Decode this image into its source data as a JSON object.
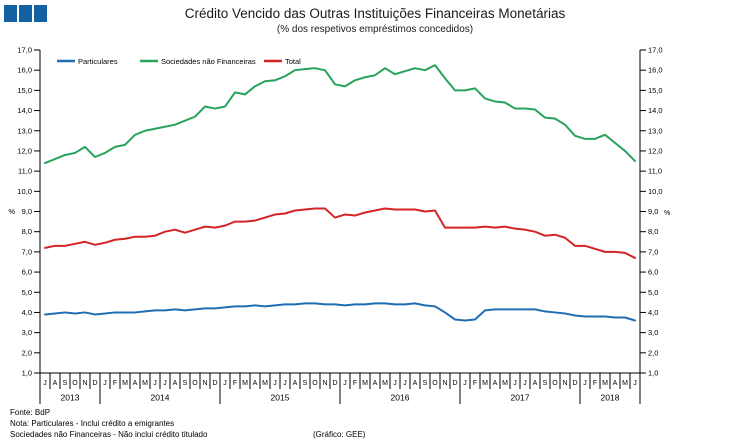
{
  "logo": {
    "color": "#1360A3",
    "square_count": 3
  },
  "header": {
    "title": "Crédito Vencido das Outras Instituições Financeiras Monetárias",
    "subtitle": "(% dos respetivos empréstimos concedidos)"
  },
  "footer": {
    "fonte": "Fonte: BdP",
    "nota1": "Nota: Particulares - Inclui crédito a emigrantes",
    "nota2": "Sociedades não Financeiras - Não inclui crédito titulado",
    "grafico": "(Gráfico: GEE)"
  },
  "chart_data": {
    "type": "line",
    "title": "Crédito Vencido das Outras Instituições Financeiras Monetárias",
    "subtitle": "(% dos respetivos empréstimos concedidos)",
    "ylabel": "%",
    "ylim": [
      1.0,
      17.0
    ],
    "ytick_step": 1.0,
    "ytick_labels": [
      "1,0",
      "2,0",
      "3,0",
      "4,0",
      "5,0",
      "6,0",
      "7,0",
      "8,0",
      "9,0",
      "10,0",
      "11,0",
      "12,0",
      "13,0",
      "14,0",
      "15,0",
      "16,0",
      "17,0"
    ],
    "percent_label": "%",
    "percent_at": "9,0",
    "grid": false,
    "legend_position": "top-left-inside",
    "x_month_labels": [
      "J",
      "A",
      "S",
      "O",
      "N",
      "D",
      "J",
      "F",
      "M",
      "A",
      "M",
      "J",
      "J",
      "A",
      "S",
      "O",
      "N",
      "D",
      "J",
      "F",
      "M",
      "A",
      "M",
      "J",
      "J",
      "A",
      "S",
      "O",
      "N",
      "D",
      "J",
      "F",
      "M",
      "A",
      "M",
      "J",
      "J",
      "A",
      "S",
      "O",
      "N",
      "D",
      "J",
      "F",
      "M",
      "A",
      "M",
      "J",
      "J",
      "A",
      "S",
      "O",
      "N",
      "D",
      "J",
      "F",
      "M",
      "A",
      "M",
      "J"
    ],
    "years": [
      {
        "label": "2013",
        "months": 6
      },
      {
        "label": "2014",
        "months": 12
      },
      {
        "label": "2015",
        "months": 12
      },
      {
        "label": "2016",
        "months": 12
      },
      {
        "label": "2017",
        "months": 12
      },
      {
        "label": "2018",
        "months": 6
      }
    ],
    "series": [
      {
        "name": "Particulares",
        "color": "#1F6EB4",
        "values": [
          3.9,
          3.95,
          4.0,
          3.95,
          4.0,
          3.9,
          3.95,
          4.0,
          4.0,
          4.0,
          4.05,
          4.1,
          4.1,
          4.15,
          4.1,
          4.15,
          4.2,
          4.2,
          4.25,
          4.3,
          4.3,
          4.35,
          4.3,
          4.35,
          4.4,
          4.4,
          4.45,
          4.45,
          4.4,
          4.4,
          4.35,
          4.4,
          4.4,
          4.45,
          4.45,
          4.4,
          4.4,
          4.45,
          4.35,
          4.3,
          4.0,
          3.65,
          3.6,
          3.65,
          4.1,
          4.15,
          4.15,
          4.15,
          4.15,
          4.15,
          4.05,
          4.0,
          3.95,
          3.85,
          3.8,
          3.8,
          3.8,
          3.75,
          3.75,
          3.6
        ]
      },
      {
        "name": "Sociedades não Financeiras",
        "color": "#27A35C",
        "values": [
          11.4,
          11.6,
          11.8,
          11.9,
          12.2,
          11.7,
          11.9,
          12.2,
          12.3,
          12.8,
          13.0,
          13.1,
          13.2,
          13.3,
          13.5,
          13.7,
          14.2,
          14.1,
          14.2,
          14.9,
          14.8,
          15.2,
          15.45,
          15.5,
          15.7,
          16.0,
          16.05,
          16.1,
          16.0,
          15.3,
          15.2,
          15.5,
          15.65,
          15.75,
          16.1,
          15.8,
          15.95,
          16.1,
          16.0,
          16.25,
          15.6,
          15.0,
          15.0,
          15.1,
          14.6,
          14.45,
          14.4,
          14.1,
          14.1,
          14.05,
          13.65,
          13.6,
          13.3,
          12.75,
          12.6,
          12.6,
          12.8,
          12.4,
          12.0,
          11.5
        ]
      },
      {
        "name": "Total",
        "color": "#D42426",
        "values": [
          7.2,
          7.3,
          7.3,
          7.4,
          7.5,
          7.35,
          7.45,
          7.6,
          7.65,
          7.75,
          7.75,
          7.8,
          8.0,
          8.1,
          7.95,
          8.1,
          8.25,
          8.2,
          8.3,
          8.5,
          8.5,
          8.55,
          8.7,
          8.85,
          8.9,
          9.05,
          9.1,
          9.15,
          9.15,
          8.7,
          8.85,
          8.8,
          8.95,
          9.05,
          9.15,
          9.1,
          9.1,
          9.1,
          9.0,
          9.05,
          8.2,
          8.2,
          8.2,
          8.2,
          8.25,
          8.2,
          8.25,
          8.15,
          8.1,
          8.0,
          7.8,
          7.85,
          7.7,
          7.3,
          7.3,
          7.15,
          7.0,
          7.0,
          6.95,
          6.7
        ]
      }
    ]
  }
}
